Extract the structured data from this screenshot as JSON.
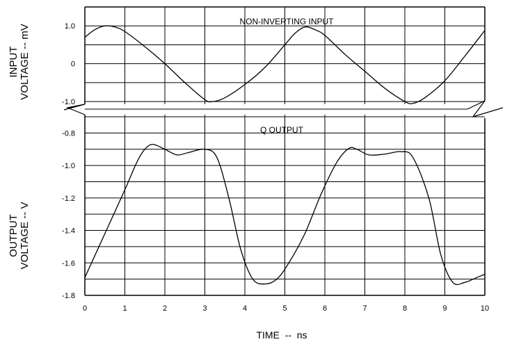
{
  "chart_data": [
    {
      "type": "line",
      "panel": "top",
      "title": "NON-INVERTING INPUT",
      "ylabel_lines": [
        "INPUT",
        "VOLTAGE -- mV"
      ],
      "xlim": [
        0,
        10
      ],
      "ylim": [
        -1.2,
        1.5
      ],
      "yticks": [
        1.0,
        0,
        -1.0
      ],
      "ytick_labels": [
        "1.0",
        "0",
        "-1.0"
      ],
      "grid": true,
      "series": [
        {
          "x": [
            0,
            0.25,
            0.5,
            0.75,
            1.0,
            1.5,
            2.0,
            2.5,
            3.0,
            3.2,
            3.5,
            4.0,
            4.5,
            5.0,
            5.25,
            5.5,
            5.75,
            6.0,
            6.5,
            7.0,
            7.5,
            8.0,
            8.2,
            8.5,
            9.0,
            9.5,
            10.0
          ],
          "y": [
            0.7,
            0.9,
            1.0,
            0.97,
            0.85,
            0.45,
            0.0,
            -0.5,
            -0.95,
            -1.0,
            -0.9,
            -0.55,
            -0.1,
            0.5,
            0.8,
            0.97,
            0.9,
            0.75,
            0.25,
            -0.2,
            -0.65,
            -1.0,
            -1.05,
            -0.9,
            -0.45,
            0.2,
            0.88
          ]
        }
      ]
    },
    {
      "type": "line",
      "panel": "bottom",
      "title": "Q OUTPUT",
      "ylabel_lines": [
        "OUTPUT",
        "VOLTAGE -- V"
      ],
      "xlabel": "TIME  --  ns",
      "xlim": [
        0,
        10
      ],
      "ylim": [
        -1.8,
        -0.7
      ],
      "xticks": [
        0,
        1,
        2,
        3,
        4,
        5,
        6,
        7,
        8,
        9,
        10
      ],
      "xtick_labels": [
        "0",
        "1",
        "2",
        "3",
        "4",
        "5",
        "6",
        "7",
        "8",
        "9",
        "10"
      ],
      "yticks": [
        -0.8,
        -1.0,
        -1.2,
        -1.4,
        -1.6,
        -1.8
      ],
      "ytick_labels": [
        "-0.8",
        "-1.0",
        "-1.2",
        "-1.4",
        "-1.6",
        "-1.8"
      ],
      "grid": true,
      "series": [
        {
          "x": [
            0,
            0.5,
            1.0,
            1.3,
            1.5,
            1.7,
            2.0,
            2.3,
            2.6,
            3.0,
            3.3,
            3.6,
            3.9,
            4.2,
            4.5,
            4.8,
            5.1,
            5.5,
            5.9,
            6.3,
            6.6,
            6.8,
            7.1,
            7.5,
            7.9,
            8.2,
            8.6,
            8.9,
            9.2,
            9.5,
            9.8,
            10.0
          ],
          "y": [
            -1.69,
            -1.42,
            -1.15,
            -0.98,
            -0.9,
            -0.87,
            -0.9,
            -0.935,
            -0.92,
            -0.9,
            -0.95,
            -1.2,
            -1.52,
            -1.7,
            -1.73,
            -1.7,
            -1.6,
            -1.42,
            -1.18,
            -0.98,
            -0.895,
            -0.9,
            -0.935,
            -0.93,
            -0.915,
            -0.95,
            -1.2,
            -1.55,
            -1.72,
            -1.72,
            -1.69,
            -1.67
          ]
        }
      ]
    }
  ]
}
